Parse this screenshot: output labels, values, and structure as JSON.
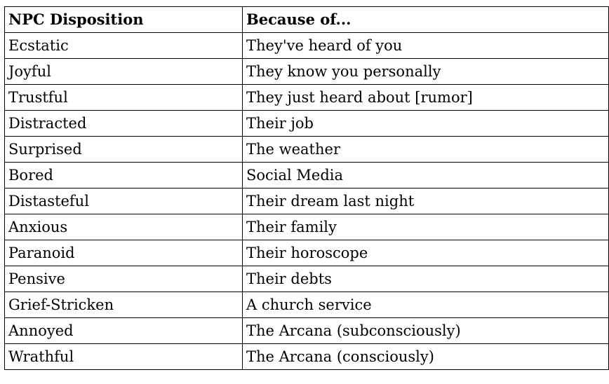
{
  "table": {
    "header": [
      "NPC Disposition",
      "Because of..."
    ],
    "rows": [
      [
        "Ecstatic",
        "They've heard of you"
      ],
      [
        "Joyful",
        "They know you personally"
      ],
      [
        "Trustful",
        "They just heard about [rumor]"
      ],
      [
        "Distracted",
        "Their job"
      ],
      [
        "Surprised",
        "The weather"
      ],
      [
        "Bored",
        "Social Media"
      ],
      [
        "Distasteful",
        "Their dream last night"
      ],
      [
        "Anxious",
        "Their family"
      ],
      [
        "Paranoid",
        "Their horoscope"
      ],
      [
        "Pensive",
        "Their debts"
      ],
      [
        "Grief-Stricken",
        "A church service"
      ],
      [
        "Annoyed",
        "The Arcana (subconsciously)"
      ],
      [
        "Wrathful",
        "The Arcana (consciously)"
      ]
    ]
  }
}
